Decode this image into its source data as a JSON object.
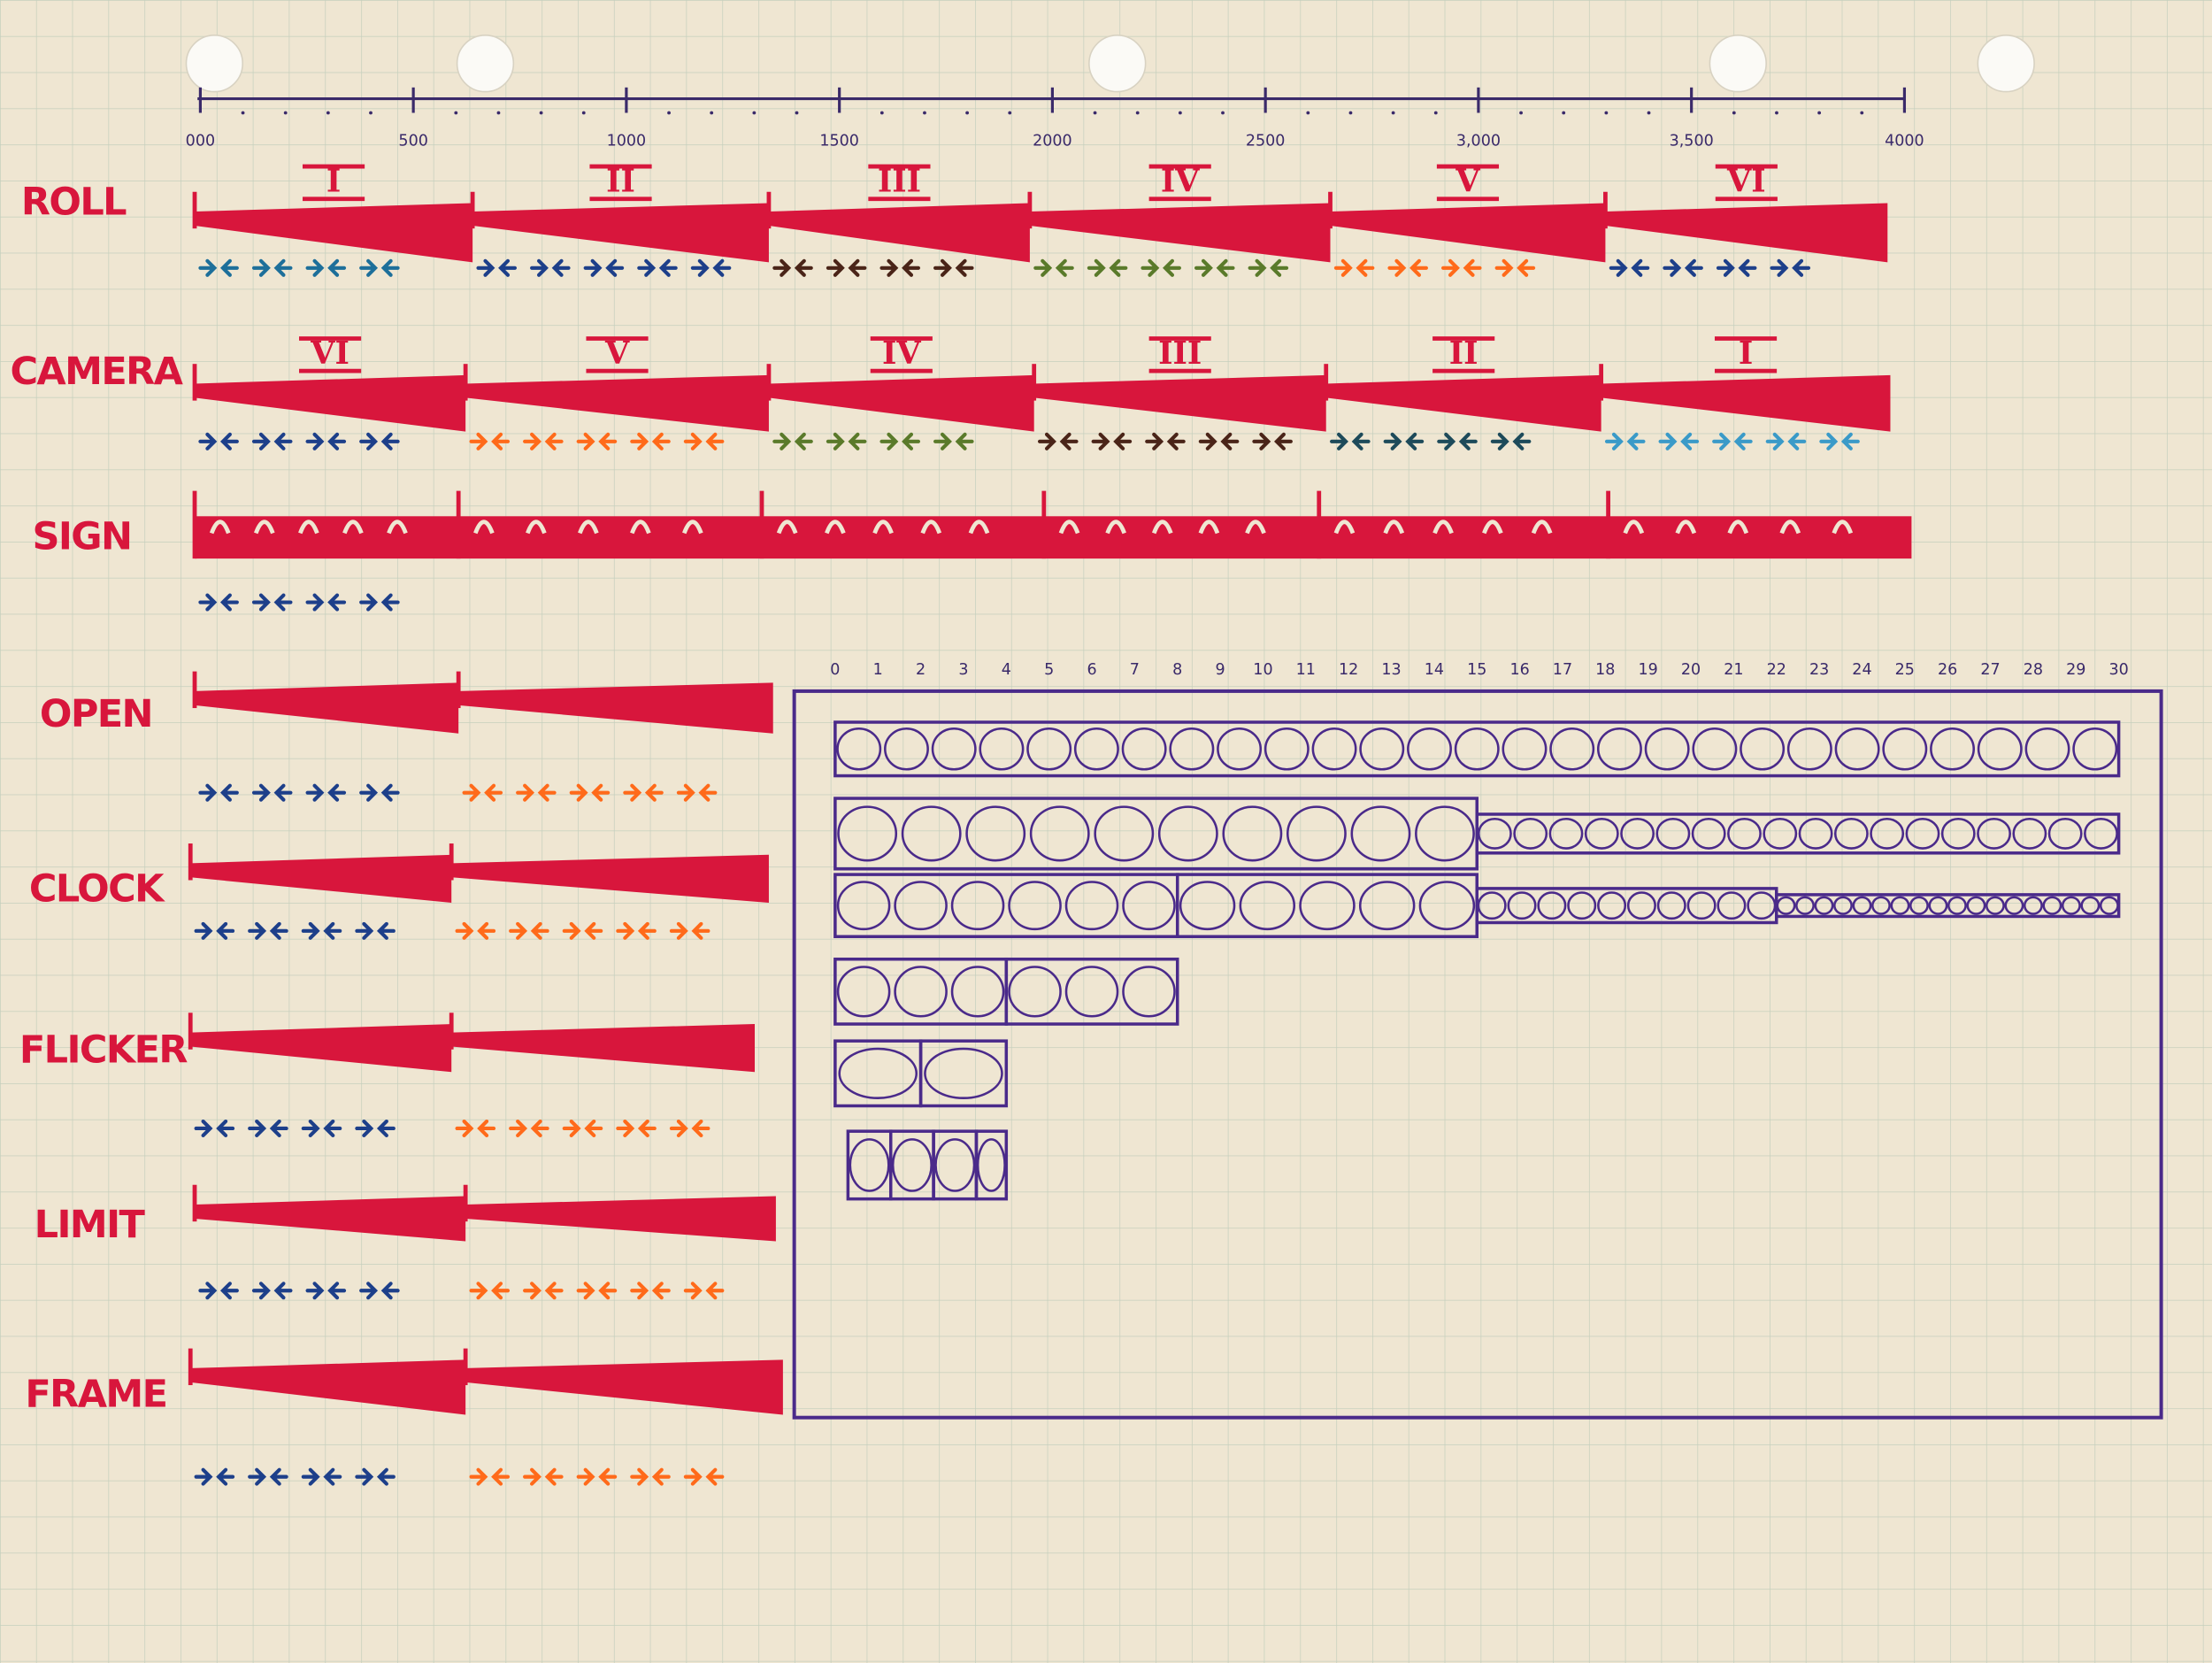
{
  "header": {
    "axis_ticks": [
      "000",
      "500",
      "1000",
      "1500",
      "2000",
      "2500",
      "3,000",
      "3,500",
      "4000"
    ]
  },
  "rows": [
    {
      "label": "ROLL",
      "numerals": [
        "I",
        "II",
        "III",
        "IV",
        "V",
        "VI"
      ]
    },
    {
      "label": "CAMERA",
      "numerals": [
        "VI",
        "V",
        "IV",
        "III",
        "II",
        "I"
      ]
    },
    {
      "label": "SIGN"
    },
    {
      "label": "OPEN"
    },
    {
      "label": "CLOCK"
    },
    {
      "label": "FLICKER"
    },
    {
      "label": "LIMIT"
    },
    {
      "label": "FRAME"
    }
  ],
  "diagram": {
    "axis_ticks": [
      "0",
      "1",
      "2",
      "3",
      "4",
      "5",
      "6",
      "7",
      "8",
      "9",
      "10",
      "11",
      "12",
      "13",
      "14",
      "15",
      "16",
      "17",
      "18",
      "19",
      "20",
      "21",
      "22",
      "23",
      "24",
      "25",
      "26",
      "27",
      "28",
      "29",
      "30"
    ]
  }
}
